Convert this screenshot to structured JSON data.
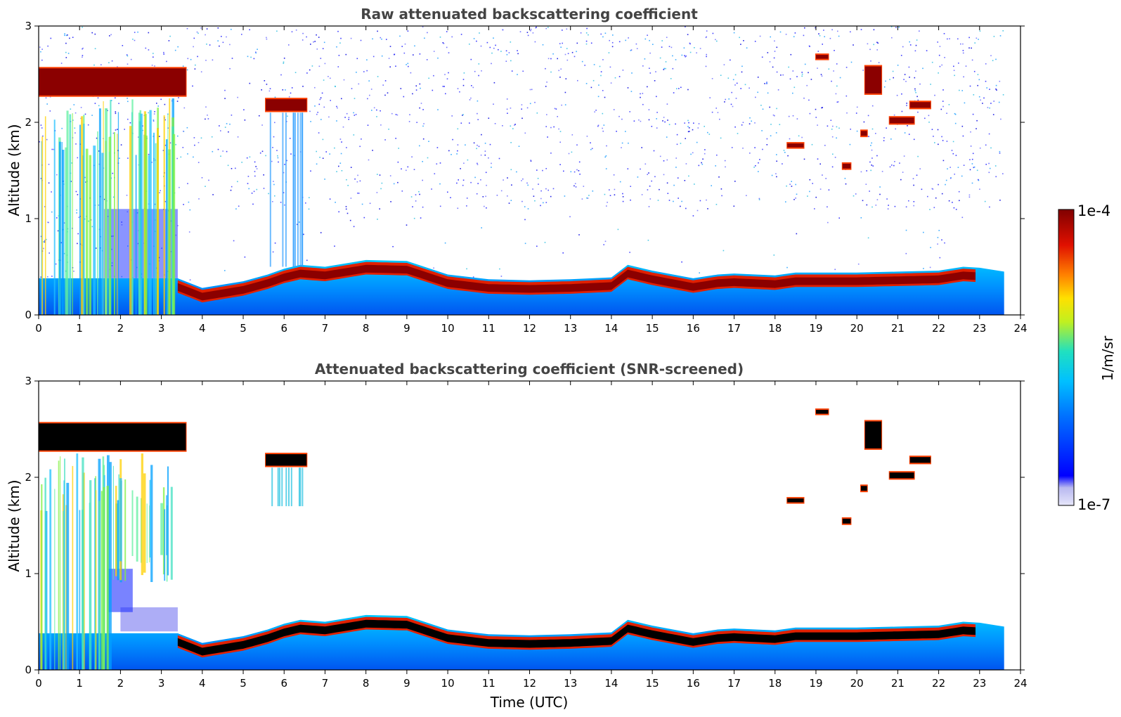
{
  "chart_data": [
    {
      "type": "heatmap",
      "title": "Raw attenuated backscattering coefficient",
      "xlabel": "",
      "ylabel": "Altitude (km)",
      "xlim": [
        0,
        24
      ],
      "ylim": [
        0,
        3
      ],
      "x_ticks": [
        "0",
        "1",
        "2",
        "3",
        "4",
        "5",
        "6",
        "7",
        "8",
        "9",
        "10",
        "11",
        "12",
        "13",
        "14",
        "15",
        "16",
        "17",
        "18",
        "19",
        "20",
        "21",
        "22",
        "23",
        "24"
      ],
      "y_ticks": [
        "0",
        "1",
        "2",
        "3"
      ],
      "data_end_hour": 23.6,
      "screened": false,
      "boundary_layer_top_km": [
        [
          0,
          0.38
        ],
        [
          3.4,
          0.38
        ],
        [
          4.0,
          0.28
        ],
        [
          5.0,
          0.35
        ],
        [
          5.6,
          0.42
        ],
        [
          6.0,
          0.48
        ],
        [
          6.4,
          0.52
        ],
        [
          7,
          0.5
        ],
        [
          8,
          0.57
        ],
        [
          9,
          0.56
        ],
        [
          10,
          0.42
        ],
        [
          11,
          0.37
        ],
        [
          12,
          0.36
        ],
        [
          13,
          0.37
        ],
        [
          14,
          0.39
        ],
        [
          14.4,
          0.52
        ],
        [
          15,
          0.46
        ],
        [
          16,
          0.38
        ],
        [
          16.6,
          0.42
        ],
        [
          17,
          0.43
        ],
        [
          18,
          0.41
        ],
        [
          18.5,
          0.44
        ],
        [
          19,
          0.44
        ],
        [
          20,
          0.44
        ],
        [
          21,
          0.45
        ],
        [
          22,
          0.46
        ],
        [
          22.6,
          0.5
        ],
        [
          23,
          0.49
        ],
        [
          23.6,
          0.45
        ]
      ],
      "cloud_layers": [
        {
          "start_h": 0.0,
          "end_h": 3.6,
          "base_km": 2.28,
          "top_km": 2.56
        },
        {
          "start_h": 5.55,
          "end_h": 6.55,
          "base_km": 2.12,
          "top_km": 2.24
        },
        {
          "start_h": 18.3,
          "end_h": 18.7,
          "base_km": 1.74,
          "top_km": 1.78
        },
        {
          "start_h": 19.0,
          "end_h": 19.3,
          "base_km": 2.66,
          "top_km": 2.7
        },
        {
          "start_h": 19.65,
          "end_h": 19.85,
          "base_km": 1.52,
          "top_km": 1.57
        },
        {
          "start_h": 20.1,
          "end_h": 20.25,
          "base_km": 1.86,
          "top_km": 1.91
        },
        {
          "start_h": 20.2,
          "end_h": 20.6,
          "base_km": 2.3,
          "top_km": 2.58
        },
        {
          "start_h": 20.8,
          "end_h": 21.4,
          "base_km": 1.99,
          "top_km": 2.05
        },
        {
          "start_h": 21.3,
          "end_h": 21.8,
          "base_km": 2.15,
          "top_km": 2.21
        }
      ]
    },
    {
      "type": "heatmap",
      "title": "Attenuated backscattering coefficient (SNR-screened)",
      "xlabel": "Time (UTC)",
      "ylabel": "Altitude (km)",
      "xlim": [
        0,
        24
      ],
      "ylim": [
        0,
        3
      ],
      "x_ticks": [
        "0",
        "1",
        "2",
        "3",
        "4",
        "5",
        "6",
        "7",
        "8",
        "9",
        "10",
        "11",
        "12",
        "13",
        "14",
        "15",
        "16",
        "17",
        "18",
        "19",
        "20",
        "21",
        "22",
        "23",
        "24"
      ],
      "y_ticks": [
        "0",
        "1",
        "2",
        "3"
      ],
      "data_end_hour": 23.6,
      "screened": true
    }
  ],
  "colorbar": {
    "label": "1/m/sr",
    "max_label": "1e-4",
    "min_label": "1e-7",
    "colormap": [
      "#e6e6fa",
      "#0000ff",
      "#00a5ff",
      "#00e5e5",
      "#ffff00",
      "#ff6600",
      "#cc0000",
      "#800000"
    ]
  }
}
